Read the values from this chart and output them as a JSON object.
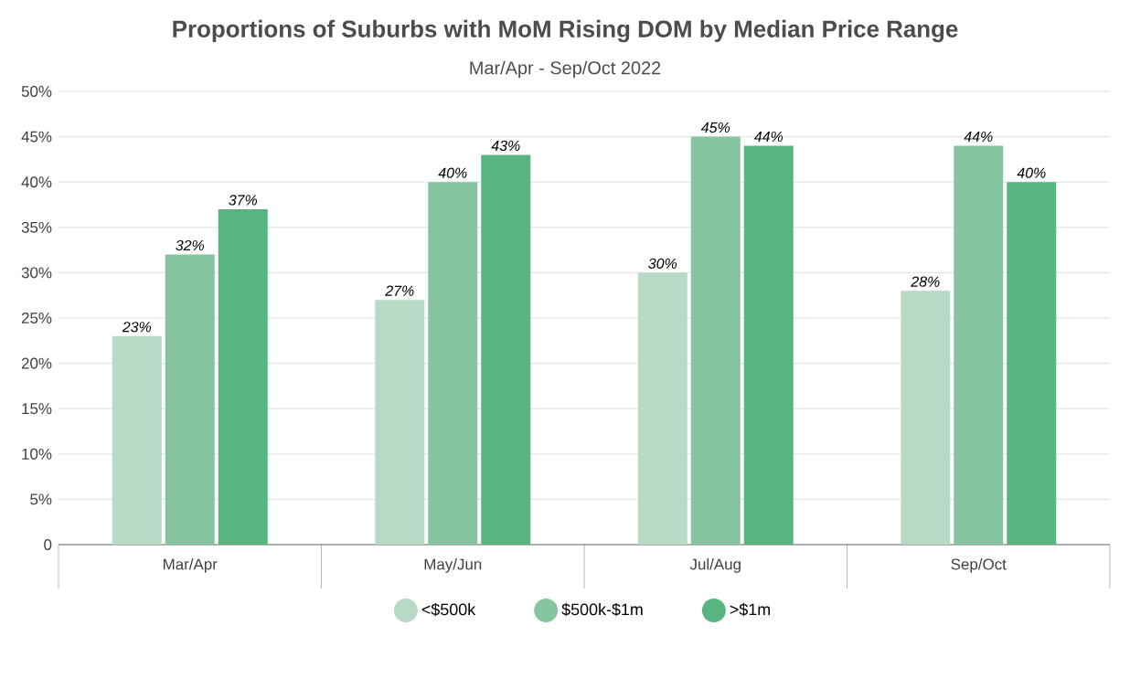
{
  "chart_data": {
    "type": "bar",
    "title": "Proportions of Suburbs with MoM Rising DOM by Median Price Range",
    "subtitle": "Mar/Apr - Sep/Oct 2022",
    "categories": [
      "Mar/Apr",
      "May/Jun",
      "Jul/Aug",
      "Sep/Oct"
    ],
    "series": [
      {
        "name": "<$500k",
        "color": "#b7d9c6",
        "values": [
          23,
          27,
          30,
          28
        ],
        "value_labels": [
          "23%",
          "27%",
          "30%",
          "28%"
        ]
      },
      {
        "name": "$500k-$1m",
        "color": "#86c4a0",
        "values": [
          32,
          40,
          45,
          44
        ],
        "value_labels": [
          "32%",
          "40%",
          "45%",
          "44%"
        ]
      },
      {
        "name": ">$1m",
        "color": "#58b580",
        "values": [
          37,
          43,
          44,
          40
        ],
        "value_labels": [
          "37%",
          "43%",
          "44%",
          "40%"
        ]
      }
    ],
    "ylim": [
      0,
      50
    ],
    "yticks": [
      0,
      {
        "value": 5,
        "label": "5%"
      },
      {
        "value": 10,
        "label": "10%"
      },
      {
        "value": 15,
        "label": "15%"
      },
      {
        "value": 20,
        "label": "20%"
      },
      {
        "value": 25,
        "label": "25%"
      },
      {
        "value": 30,
        "label": "30%"
      },
      {
        "value": 35,
        "label": "35%"
      },
      {
        "value": 40,
        "label": "40%"
      },
      {
        "value": 45,
        "label": "45%"
      },
      {
        "value": 50,
        "label": "50%"
      }
    ],
    "grid": "y",
    "legend": "bottom"
  }
}
